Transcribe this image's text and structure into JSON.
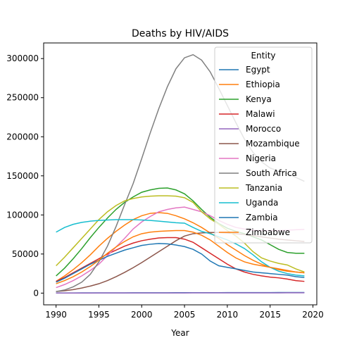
{
  "chart_data": {
    "type": "line",
    "title": "Deaths by HIV/AIDS",
    "xlabel": "Year",
    "ylabel": "",
    "xlim": [
      1988.55,
      2020.45
    ],
    "ylim": [
      -15000,
      320000
    ],
    "xticks": [
      1990,
      1995,
      2000,
      2005,
      2010,
      2015,
      2020
    ],
    "yticks": [
      0,
      50000,
      100000,
      150000,
      200000,
      250000,
      300000
    ],
    "grid": false,
    "legend": {
      "title": "Entity",
      "placement": "upper right"
    },
    "x": [
      1990,
      1991,
      1992,
      1993,
      1994,
      1995,
      1996,
      1997,
      1998,
      1999,
      2000,
      2001,
      2002,
      2003,
      2004,
      2005,
      2006,
      2007,
      2008,
      2009,
      2010,
      2011,
      2012,
      2013,
      2014,
      2015,
      2016,
      2017,
      2018,
      2019
    ],
    "series": [
      {
        "name": "Egypt",
        "color": "#1f77b4",
        "values": [
          200,
          220,
          240,
          260,
          280,
          300,
          320,
          340,
          360,
          380,
          400,
          420,
          440,
          460,
          480,
          500,
          520,
          540,
          560,
          580,
          600,
          620,
          640,
          660,
          680,
          700,
          710,
          720,
          730,
          740
        ]
      },
      {
        "name": "Ethiopia",
        "color": "#ff7f0e",
        "values": [
          15000,
          22000,
          30000,
          39000,
          49000,
          60000,
          70000,
          79000,
          87000,
          94000,
          99000,
          102000,
          103000,
          102000,
          99000,
          95000,
          90000,
          84000,
          77000,
          70000,
          62000,
          55000,
          48000,
          42000,
          37000,
          33000,
          30000,
          28000,
          27000,
          26000
        ]
      },
      {
        "name": "Kenya",
        "color": "#2ca02c",
        "values": [
          22000,
          32000,
          44000,
          57000,
          71000,
          84000,
          96000,
          107000,
          116000,
          123000,
          129000,
          132000,
          134000,
          134500,
          132000,
          127000,
          118000,
          107000,
          97000,
          89000,
          83000,
          79000,
          76000,
          72000,
          68000,
          62000,
          56000,
          52000,
          51000,
          51000
        ]
      },
      {
        "name": "Malawi",
        "color": "#d62728",
        "values": [
          15000,
          20000,
          26000,
          32000,
          38000,
          44000,
          50000,
          55000,
          60000,
          64000,
          67000,
          69000,
          70500,
          71000,
          71000,
          69000,
          65000,
          58000,
          51000,
          44000,
          37000,
          31000,
          27000,
          24000,
          22000,
          20500,
          19500,
          18000,
          16000,
          15000
        ]
      },
      {
        "name": "Morocco",
        "color": "#9467bd",
        "values": [
          100,
          110,
          120,
          130,
          140,
          150,
          160,
          170,
          180,
          190,
          200,
          210,
          220,
          230,
          240,
          250,
          260,
          270,
          280,
          290,
          300,
          310,
          320,
          330,
          340,
          350,
          360,
          370,
          380,
          390
        ]
      },
      {
        "name": "Mozambique",
        "color": "#8c564b",
        "values": [
          2000,
          3000,
          4500,
          6500,
          9000,
          12000,
          16000,
          21000,
          26500,
          32500,
          39000,
          46000,
          53000,
          60000,
          67000,
          73000,
          76000,
          77000,
          77500,
          77500,
          77000,
          76000,
          75000,
          73500,
          72000,
          70500,
          69000,
          68000,
          67000,
          66000
        ]
      },
      {
        "name": "Nigeria",
        "color": "#e377c2",
        "values": [
          7000,
          11000,
          16000,
          22000,
          29000,
          37000,
          48000,
          59000,
          70000,
          82000,
          91000,
          98000,
          104000,
          107000,
          109000,
          110000,
          107000,
          104000,
          99000,
          93000,
          88000,
          84000,
          82000,
          80500,
          80000,
          80000,
          80000,
          80500,
          81000,
          81500
        ]
      },
      {
        "name": "South Africa",
        "color": "#7f7f7f",
        "values": [
          2000,
          4000,
          8000,
          14000,
          24000,
          40000,
          60000,
          85000,
          113000,
          140000,
          172000,
          205000,
          236000,
          264000,
          287000,
          301000,
          305000,
          298000,
          283000,
          262000,
          240000,
          218000,
          197000,
          180000,
          168000,
          160000,
          156000,
          153000,
          148000,
          143000
        ]
      },
      {
        "name": "Tanzania",
        "color": "#bcbd22",
        "values": [
          35000,
          46000,
          58000,
          70000,
          82000,
          94000,
          104000,
          112000,
          118000,
          121000,
          123000,
          124000,
          124500,
          124500,
          124000,
          122000,
          116000,
          104000,
          95000,
          88000,
          80000,
          73000,
          64000,
          53000,
          45000,
          41000,
          38000,
          36000,
          31000,
          27000
        ]
      },
      {
        "name": "Uganda",
        "color": "#17becf",
        "values": [
          78000,
          84000,
          88000,
          90500,
          92000,
          93000,
          93500,
          94000,
          94000,
          94000,
          93500,
          93000,
          92000,
          91000,
          90000,
          89500,
          84000,
          79000,
          76000,
          72000,
          68000,
          63000,
          57000,
          49000,
          40000,
          33000,
          28000,
          25000,
          23000,
          22000
        ]
      },
      {
        "name": "Zambia",
        "color": "#1f77b4",
        "values": [
          14000,
          19000,
          25000,
          31000,
          37000,
          42000,
          47000,
          51000,
          55000,
          58000,
          61000,
          62500,
          63500,
          63000,
          61500,
          59500,
          56000,
          50000,
          41000,
          35000,
          33000,
          31000,
          29000,
          27000,
          26000,
          25000,
          24000,
          23000,
          21000,
          20000
        ]
      },
      {
        "name": "Zimbabwe",
        "color": "#ff7f0e",
        "values": [
          12000,
          16000,
          21000,
          27000,
          34000,
          42000,
          51000,
          59000,
          66000,
          72000,
          76000,
          78000,
          79000,
          79500,
          80000,
          80000,
          78000,
          74000,
          68000,
          60000,
          52000,
          45000,
          40000,
          37000,
          35000,
          33000,
          31000,
          29000,
          27000,
          26000
        ]
      }
    ]
  }
}
